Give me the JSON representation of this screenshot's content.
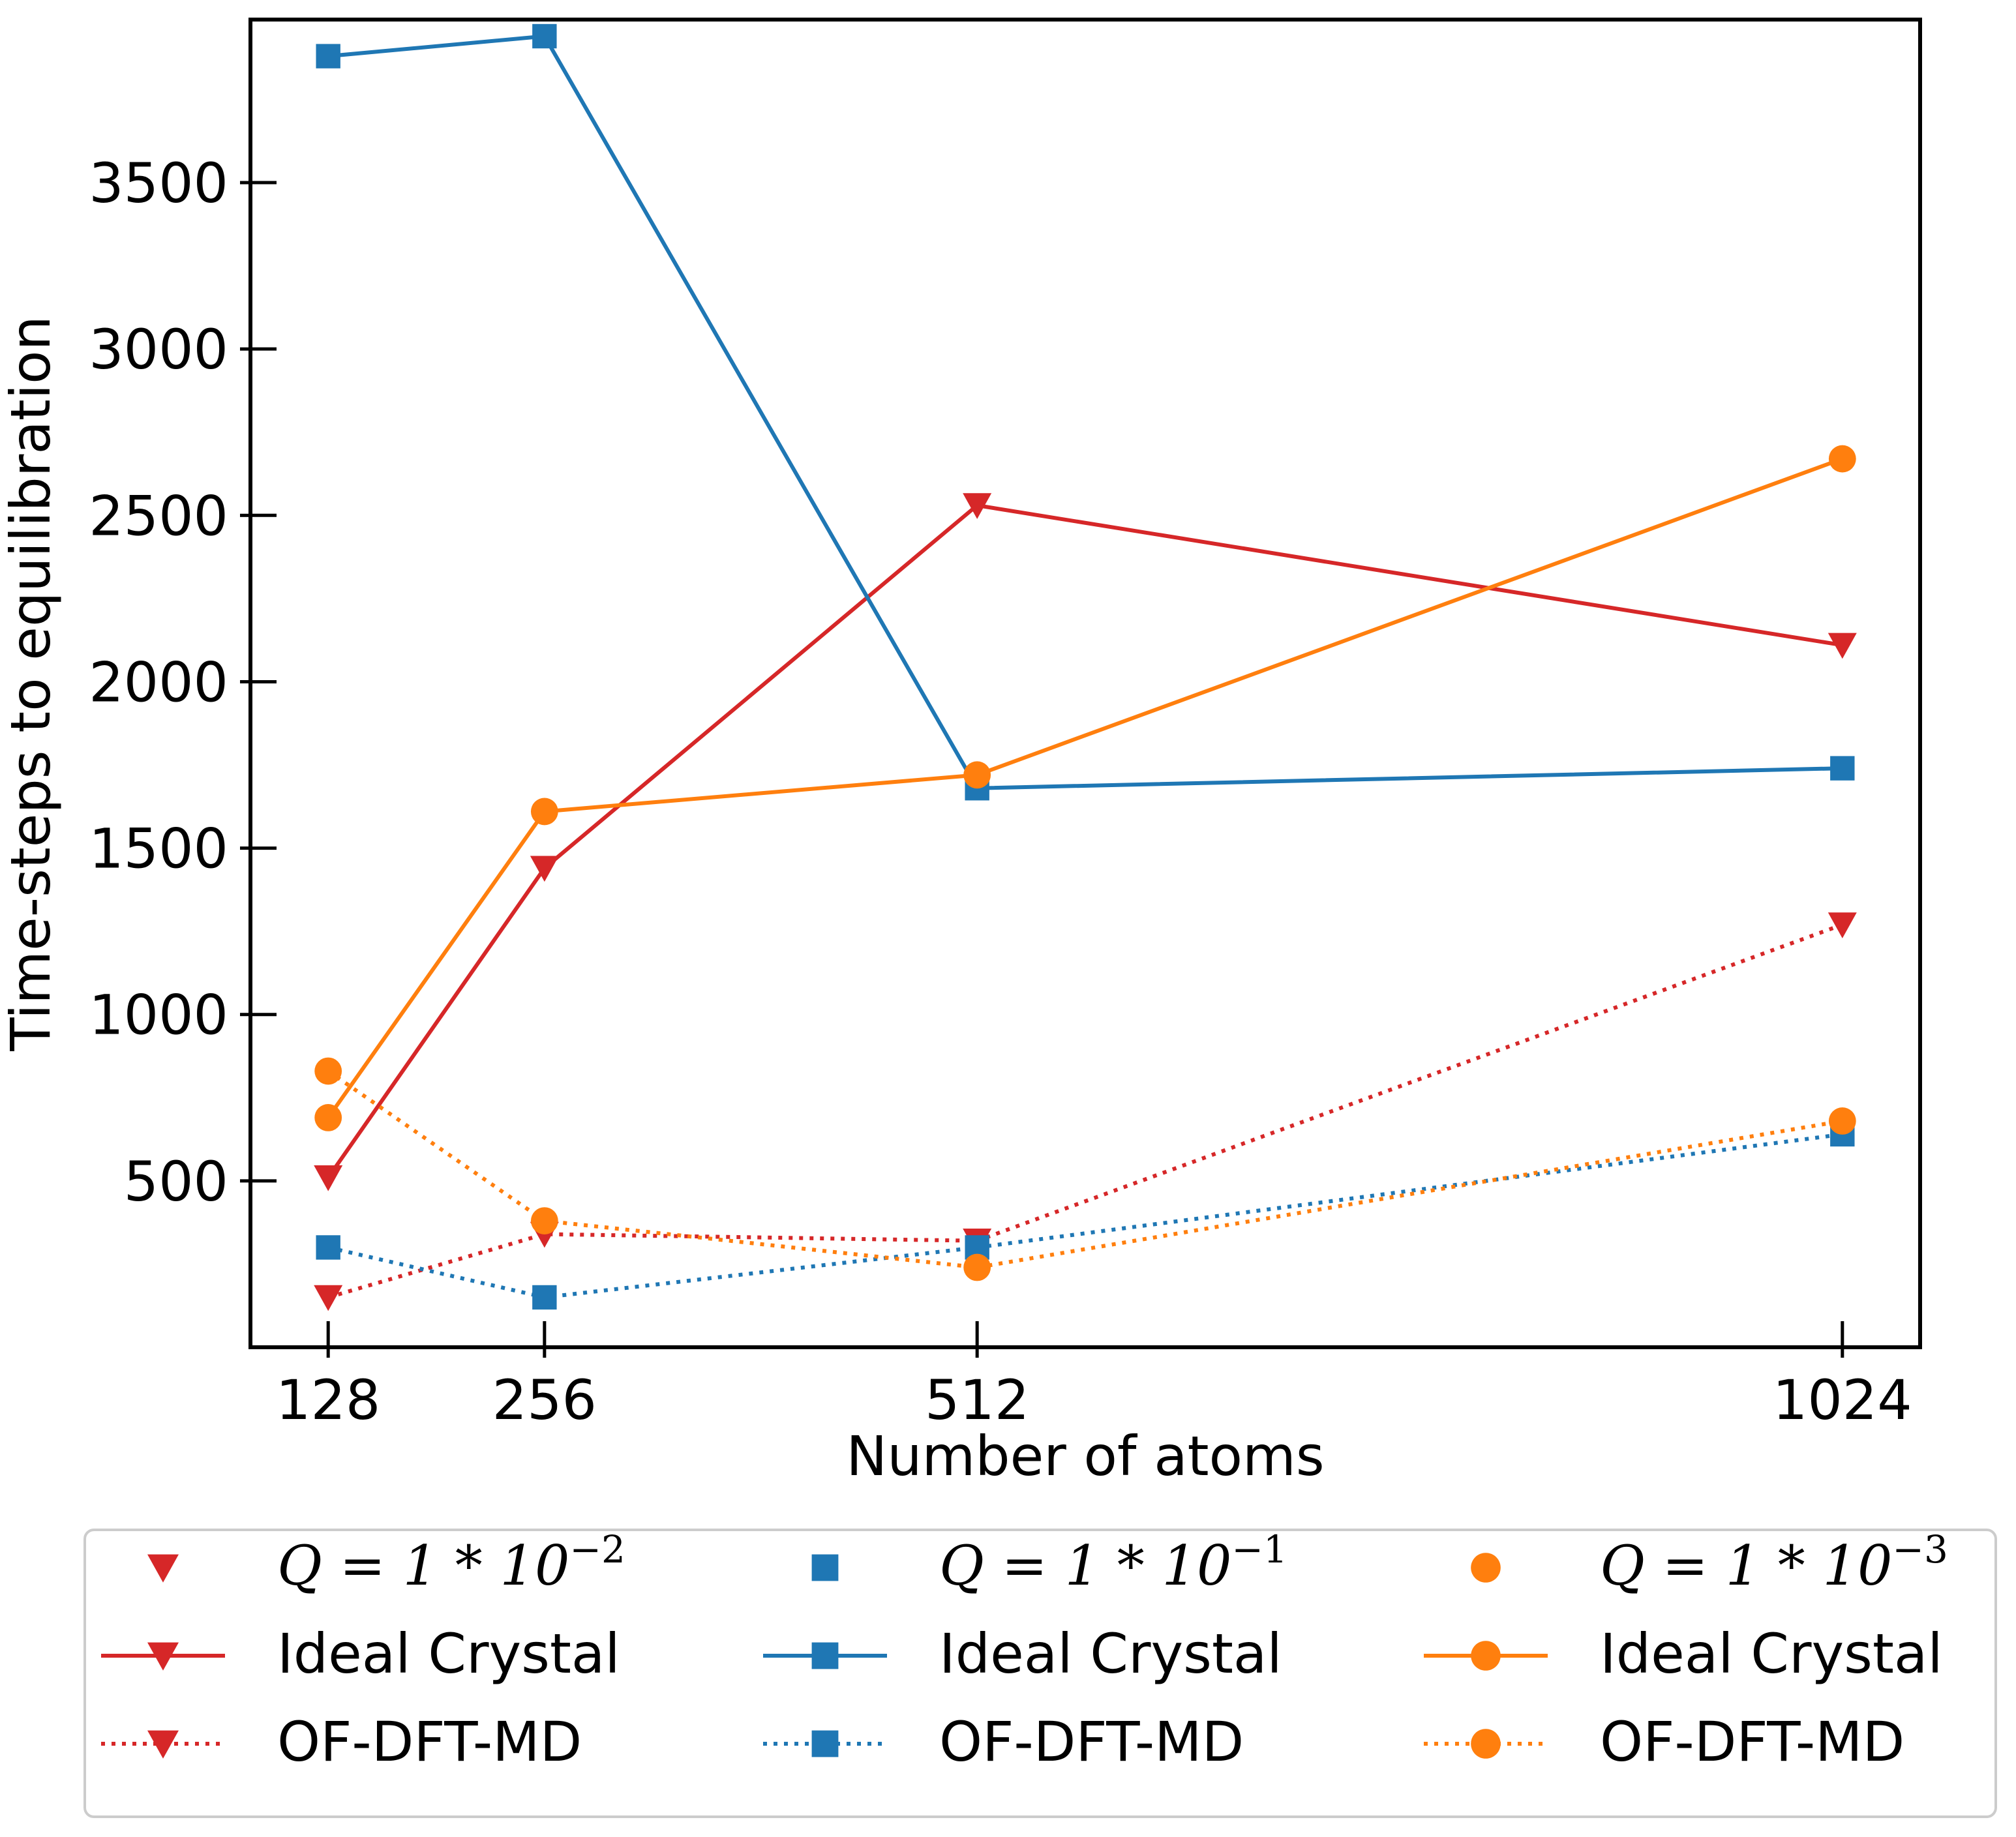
{
  "chart_data": {
    "type": "line",
    "title": "",
    "xlabel": "Number of atoms",
    "ylabel": "Time-steps to equilibration",
    "x": [
      128,
      256,
      512,
      1024
    ],
    "xticks": [
      "128",
      "256",
      "512",
      "1024"
    ],
    "yticks": [
      500,
      1000,
      1500,
      2000,
      2500,
      3000,
      3500
    ],
    "ytick_labels": [
      "500",
      "1000",
      "1500",
      "2000",
      "2500",
      "3000",
      "3500"
    ],
    "xlim": [
      82,
      1070
    ],
    "ylim": [
      0,
      3990
    ],
    "grid": false,
    "legend_placement": "below",
    "series": [
      {
        "name": "Ideal Crystal",
        "group": "Q = 1 * 10^-2",
        "color": "#d62728",
        "marker": "triangle-down",
        "linestyle": "solid",
        "values": [
          510,
          1440,
          2530,
          2110
        ]
      },
      {
        "name": "OF-DFT-MD",
        "group": "Q = 1 * 10^-2",
        "color": "#d62728",
        "marker": "triangle-down",
        "linestyle": "dotted",
        "values": [
          150,
          340,
          320,
          1270
        ]
      },
      {
        "name": "Ideal Crystal",
        "group": "Q = 1 * 10^-1",
        "color": "#1f77b4",
        "marker": "square",
        "linestyle": "solid",
        "values": [
          3880,
          3940,
          1680,
          1740
        ]
      },
      {
        "name": "OF-DFT-MD",
        "group": "Q = 1 * 10^-1",
        "color": "#1f77b4",
        "marker": "square",
        "linestyle": "dotted",
        "values": [
          300,
          150,
          300,
          640
        ]
      },
      {
        "name": "Ideal Crystal",
        "group": "Q = 1 * 10^-3",
        "color": "#ff7f0e",
        "marker": "circle",
        "linestyle": "solid",
        "values": [
          690,
          1610,
          1720,
          2670
        ]
      },
      {
        "name": "OF-DFT-MD",
        "group": "Q = 1 * 10^-3",
        "color": "#ff7f0e",
        "marker": "circle",
        "linestyle": "dotted",
        "values": [
          830,
          380,
          240,
          680
        ]
      }
    ],
    "legend": [
      {
        "q_base": "Q = 1 * 10",
        "q_exp": "−2",
        "color": "#d62728",
        "marker": "triangle-down",
        "solid_label": "Ideal Crystal",
        "dotted_label": "OF-DFT-MD"
      },
      {
        "q_base": "Q = 1 * 10",
        "q_exp": "−1",
        "color": "#1f77b4",
        "marker": "square",
        "solid_label": "Ideal Crystal",
        "dotted_label": "OF-DFT-MD"
      },
      {
        "q_base": "Q = 1 * 10",
        "q_exp": "−3",
        "color": "#ff7f0e",
        "marker": "circle",
        "solid_label": "Ideal Crystal",
        "dotted_label": "OF-DFT-MD"
      }
    ]
  }
}
